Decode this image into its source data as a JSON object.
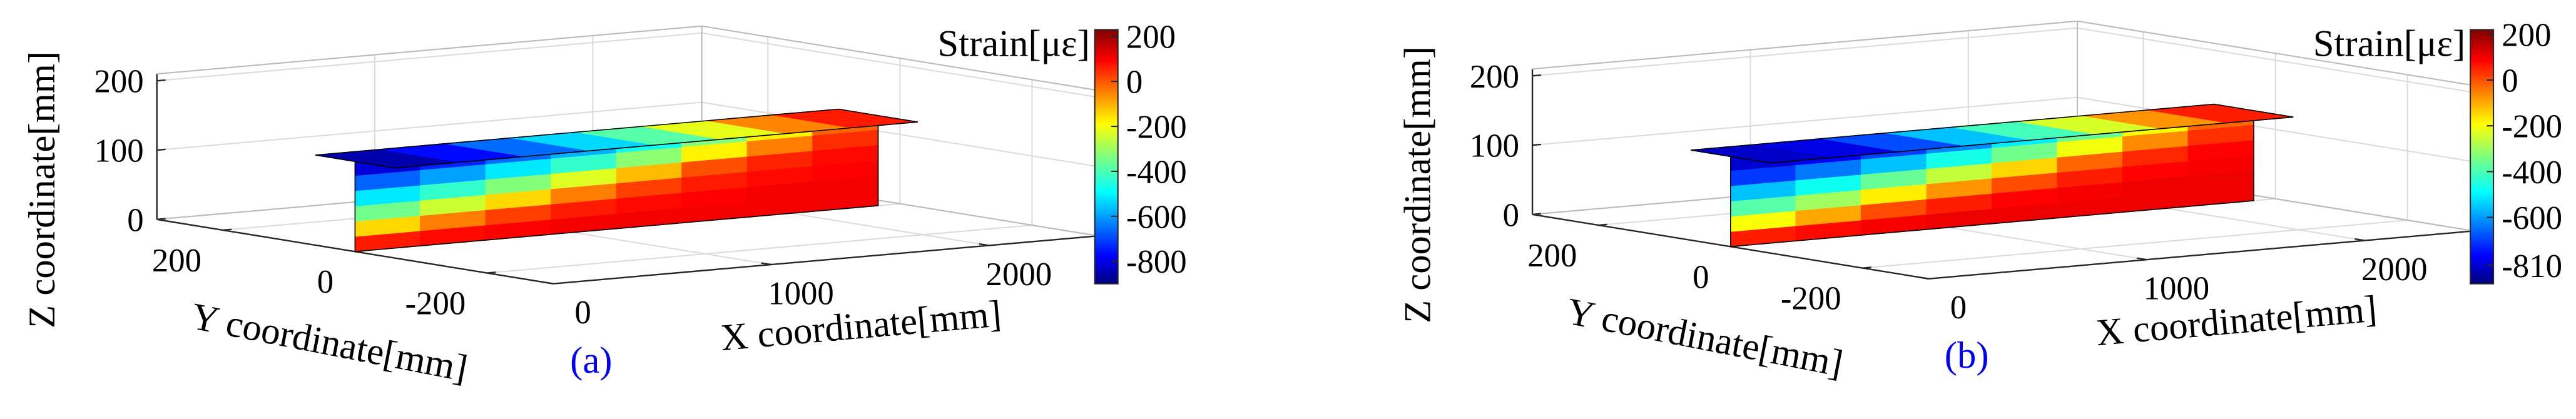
{
  "chart_data": [
    {
      "type": "surface3d",
      "panel_label": "(a)",
      "x_label": "X coordinate[mm]",
      "y_label": "Y coordinate[mm]",
      "z_label": "Z coordinate[mm]",
      "xlim": [
        0,
        2500
      ],
      "ylim": [
        -300,
        300
      ],
      "zlim": [
        0,
        210
      ],
      "xticks": [
        0,
        1000,
        2000
      ],
      "yticks": [
        -200,
        0,
        200
      ],
      "zticks": [
        0,
        100,
        200
      ],
      "grid": true,
      "surface": {
        "web_y": 0,
        "flange_y_edges": [
          -60,
          60
        ],
        "x_edges": [
          0,
          300,
          600,
          900,
          1200,
          1500,
          1800,
          2100,
          2400
        ],
        "z_edges": [
          0,
          22,
          44,
          66,
          88,
          110,
          130
        ],
        "web_values": [
          [
            60,
            80,
            90,
            100,
            100,
            100,
            100,
            100
          ],
          [
            -150,
            -50,
            20,
            60,
            80,
            90,
            100,
            100
          ],
          [
            -350,
            -250,
            -150,
            -50,
            20,
            60,
            80,
            90
          ],
          [
            -500,
            -420,
            -330,
            -230,
            -120,
            0,
            50,
            80
          ],
          [
            -650,
            -580,
            -500,
            -420,
            -320,
            -180,
            -50,
            40
          ],
          [
            -800,
            -720,
            -640,
            -560,
            -460,
            -330,
            -180,
            -20
          ]
        ],
        "flange_values": [
          -850,
          -750,
          -640,
          -520,
          -380,
          -220,
          -60,
          60
        ]
      },
      "colorbar": {
        "label": "Strain[με]",
        "colormap": "jet",
        "lim": [
          -900,
          230
        ],
        "ticks": [
          200,
          0,
          -200,
          -400,
          -600,
          -800
        ]
      }
    },
    {
      "type": "surface3d",
      "panel_label": "(b)",
      "x_label": "X coordinate[mm]",
      "y_label": "Y coordinate[mm]",
      "z_label": "Z coordinate[mm]",
      "xlim": [
        0,
        2500
      ],
      "ylim": [
        -300,
        300
      ],
      "zlim": [
        0,
        210
      ],
      "xticks": [
        0,
        1000,
        2000
      ],
      "yticks": [
        -200,
        0,
        200
      ],
      "zticks": [
        0,
        100,
        200
      ],
      "grid": true,
      "surface": {
        "web_y": 0,
        "flange_y_edges": [
          -60,
          60
        ],
        "x_edges": [
          0,
          300,
          600,
          900,
          1200,
          1500,
          1800,
          2100,
          2400
        ],
        "z_edges": [
          0,
          22,
          44,
          66,
          88,
          110,
          130
        ],
        "web_values": [
          [
            50,
            70,
            90,
            100,
            100,
            100,
            100,
            100
          ],
          [
            -200,
            -100,
            0,
            50,
            80,
            90,
            100,
            100
          ],
          [
            -380,
            -300,
            -180,
            -80,
            0,
            50,
            80,
            90
          ],
          [
            -540,
            -460,
            -360,
            -260,
            -150,
            -30,
            40,
            80
          ],
          [
            -690,
            -620,
            -540,
            -450,
            -350,
            -210,
            -70,
            30
          ],
          [
            -800,
            -760,
            -680,
            -600,
            -490,
            -360,
            -200,
            -30
          ]
        ],
        "flange_values": [
          -810,
          -780,
          -670,
          -540,
          -400,
          -240,
          -80,
          50
        ]
      },
      "colorbar": {
        "label": "Strain[με]",
        "colormap": "jet",
        "lim": [
          -890,
          220
        ],
        "ticks": [
          200,
          0,
          -200,
          -400,
          -600,
          -810
        ]
      }
    }
  ]
}
